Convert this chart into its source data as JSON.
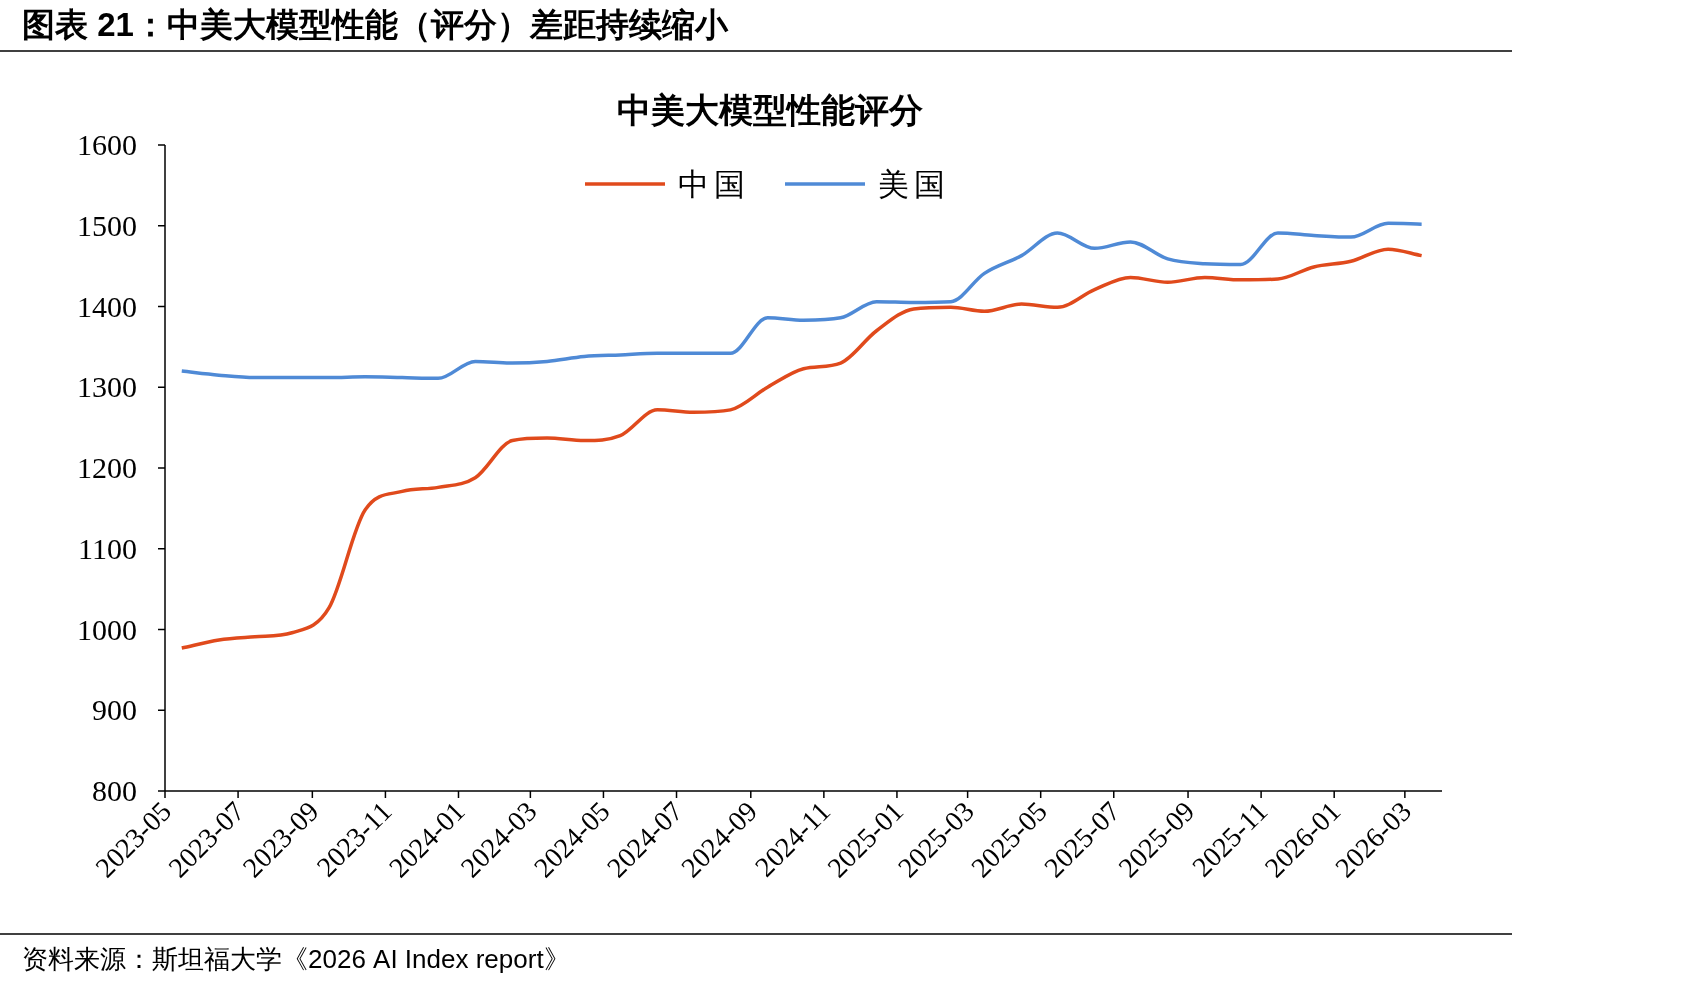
{
  "chart_data": {
    "type": "line",
    "title": "中美大模型性能评分",
    "annotations": [
      "图表 21：中美大模型性能（评分）差距持续缩小",
      "资料来源：斯坦福大学《2026 AI Index report》"
    ],
    "x": [
      "2023-05-15",
      "2023-06-15",
      "2023-07-15",
      "2023-08-15",
      "2023-09-15",
      "2023-10-15",
      "2023-11-15",
      "2023-12-15",
      "2024-01-15",
      "2024-02-15",
      "2024-03-15",
      "2024-04-15",
      "2024-05-15",
      "2024-06-15",
      "2024-07-15",
      "2024-08-15",
      "2024-09-15",
      "2024-10-15",
      "2024-11-15",
      "2024-12-15",
      "2025-01-15",
      "2025-02-15",
      "2025-03-15",
      "2025-04-15",
      "2025-05-15",
      "2025-06-15",
      "2025-07-15",
      "2025-08-15",
      "2025-09-15",
      "2025-10-15",
      "2025-11-15",
      "2025-12-15",
      "2026-01-15",
      "2026-02-15",
      "2026-03-15"
    ],
    "series": [
      {
        "name": "中国",
        "color": "#e04a1c",
        "values": [
          977,
          987,
          991,
          996,
          1027,
          1148,
          1171,
          1176,
          1188,
          1234,
          1237,
          1234,
          1240,
          1272,
          1269,
          1272,
          1300,
          1323,
          1330,
          1370,
          1397,
          1399,
          1394,
          1403,
          1399,
          1421,
          1436,
          1430,
          1436,
          1433,
          1434,
          1449,
          1456,
          1471,
          1463
        ]
      },
      {
        "name": "美国",
        "color": "#4f8ad6",
        "values": [
          1320,
          1315,
          1312,
          1312,
          1312,
          1313,
          1312,
          1311,
          1332,
          1330,
          1332,
          1338,
          1340,
          1342,
          1342,
          1342,
          1386,
          1383,
          1386,
          1406,
          1405,
          1406,
          1441,
          1463,
          1491,
          1472,
          1480,
          1459,
          1453,
          1452,
          1491,
          1488,
          1486,
          1503,
          1502
        ]
      }
    ],
    "xlim": [
      "2023-05-01",
      "2026-04-01"
    ],
    "xticks": [
      {
        "value": "2023-05-01",
        "label": "2023-05"
      },
      {
        "value": "2023-07-01",
        "label": "2023-07"
      },
      {
        "value": "2023-09-01",
        "label": "2023-09"
      },
      {
        "value": "2023-11-01",
        "label": "2023-11"
      },
      {
        "value": "2024-01-01",
        "label": "2024-01"
      },
      {
        "value": "2024-03-01",
        "label": "2024-03"
      },
      {
        "value": "2024-05-01",
        "label": "2024-05"
      },
      {
        "value": "2024-07-01",
        "label": "2024-07"
      },
      {
        "value": "2024-09-01",
        "label": "2024-09"
      },
      {
        "value": "2024-11-01",
        "label": "2024-11"
      },
      {
        "value": "2025-01-01",
        "label": "2025-01"
      },
      {
        "value": "2025-03-01",
        "label": "2025-03"
      },
      {
        "value": "2025-05-01",
        "label": "2025-05"
      },
      {
        "value": "2025-07-01",
        "label": "2025-07"
      },
      {
        "value": "2025-09-01",
        "label": "2025-09"
      },
      {
        "value": "2025-11-01",
        "label": "2025-11"
      },
      {
        "value": "2026-01-01",
        "label": "2026-01"
      },
      {
        "value": "2026-03-01",
        "label": "2026-03"
      }
    ],
    "ylim": [
      800,
      1600
    ],
    "yticks": [
      800,
      900,
      1000,
      1100,
      1200,
      1300,
      1400,
      1500,
      1600
    ],
    "legend": "top",
    "grid": false,
    "marker": "none",
    "line_style": "solid"
  }
}
